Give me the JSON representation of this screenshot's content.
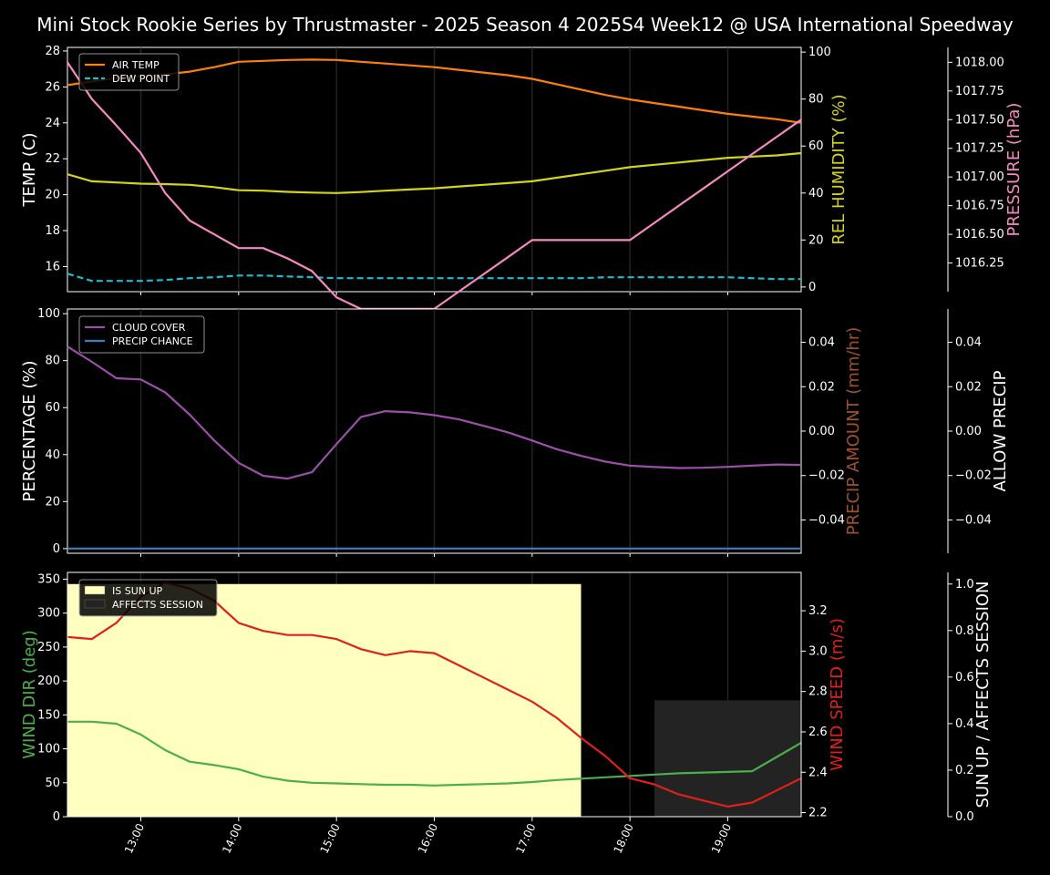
{
  "title": "Mini Stock Rookie Series by Thrustmaster - 2025 Season 4 2025S4 Week12 @ USA International Speedway",
  "x_ticks": [
    "13:00",
    "14:00",
    "15:00",
    "16:00",
    "17:00",
    "18:00",
    "19:00"
  ],
  "colors": {
    "air_temp": "#ff7f0e",
    "dew_point": "#17becf",
    "humidity": "#d4d41a",
    "pressure": "#f58ac0",
    "cloud": "#9b4fa8",
    "precip_chance": "#3a7fc1",
    "precip_amount": "#a0522d",
    "wind_dir": "#4cae4c",
    "wind_speed": "#e0201a",
    "sun_up": "#ffffc0",
    "affects": "#232323"
  },
  "chart_data": [
    {
      "type": "line",
      "panel": "weather",
      "x_hours": [
        12.25,
        12.5,
        12.75,
        13,
        13.25,
        13.5,
        13.75,
        14,
        14.25,
        14.5,
        14.75,
        15,
        15.25,
        15.5,
        15.75,
        16,
        16.25,
        16.5,
        16.75,
        17,
        17.25,
        17.5,
        17.75,
        18,
        18.25,
        18.5,
        18.75,
        19,
        19.25,
        19.5,
        19.75
      ],
      "axes": {
        "temp": {
          "label": "TEMP (C)",
          "lim": [
            14.6,
            28.2
          ],
          "ticks": [
            16,
            18,
            20,
            22,
            24,
            26,
            28
          ]
        },
        "humidity": {
          "label": "REL HUMIDITY (%)",
          "lim": [
            -2,
            102
          ],
          "ticks": [
            0,
            20,
            40,
            60,
            80,
            100
          ]
        },
        "pressure": {
          "label": "PRESSURE (hPa)",
          "lim": [
            1016.0,
            1018.13
          ],
          "ticks": [
            "1016.25",
            "1016.50",
            "1016.75",
            "1017.00",
            "1017.25",
            "1017.50",
            "1017.75",
            "1018.00"
          ]
        }
      },
      "series": [
        {
          "name": "AIR TEMP",
          "axis": "temp",
          "values": [
            26.1,
            26.3,
            26.5,
            26.6,
            26.7,
            26.85,
            27.1,
            27.4,
            27.45,
            27.5,
            27.52,
            27.5,
            27.4,
            27.3,
            27.2,
            27.1,
            26.95,
            26.8,
            26.65,
            26.45,
            26.15,
            25.85,
            25.55,
            25.3,
            25.1,
            24.9,
            24.7,
            24.5,
            24.35,
            24.2,
            24.0
          ]
        },
        {
          "name": "DEW POINT",
          "axis": "temp",
          "values": [
            15.6,
            15.2,
            15.2,
            15.2,
            15.25,
            15.35,
            15.4,
            15.5,
            15.5,
            15.45,
            15.4,
            15.35,
            15.35,
            15.35,
            15.35,
            15.35,
            15.35,
            15.35,
            15.35,
            15.35,
            15.35,
            15.35,
            15.4,
            15.4,
            15.4,
            15.4,
            15.4,
            15.4,
            15.35,
            15.3,
            15.3
          ]
        },
        {
          "name": "REL HUMIDITY",
          "axis": "humidity",
          "values": [
            48,
            45,
            44.5,
            44,
            43.8,
            43.5,
            42.5,
            41.2,
            41,
            40.5,
            40.2,
            40,
            40.4,
            41,
            41.5,
            42,
            42.8,
            43.5,
            44.2,
            45,
            46.5,
            48,
            49.5,
            51,
            52,
            53,
            54,
            55,
            55.5,
            56,
            57
          ]
        },
        {
          "name": "PRESSURE",
          "axis": "pressure",
          "values": [
            1018.0,
            1017.68,
            1017.45,
            1017.21,
            1016.86,
            1016.62,
            1016.5,
            1016.38,
            1016.38,
            1016.29,
            1016.18,
            1015.95,
            1015.85,
            1015.85,
            1015.85,
            1015.85,
            1016.0,
            1016.15,
            1016.3,
            1016.45,
            1016.45,
            1016.45,
            1016.45,
            1016.45,
            1016.6,
            1016.75,
            1016.9,
            1017.05,
            1017.2,
            1017.35,
            1017.5
          ]
        }
      ]
    },
    {
      "type": "line",
      "panel": "clouds",
      "x_hours": [
        12.25,
        12.5,
        12.75,
        13,
        13.25,
        13.5,
        13.75,
        14,
        14.25,
        14.5,
        14.75,
        15,
        15.25,
        15.5,
        15.75,
        16,
        16.25,
        16.5,
        16.75,
        17,
        17.25,
        17.5,
        17.75,
        18,
        18.25,
        18.5,
        18.75,
        19,
        19.25,
        19.5,
        19.75
      ],
      "axes": {
        "percentage": {
          "label": "PERCENTAGE (%)",
          "lim": [
            -2,
            102
          ],
          "ticks": [
            0,
            20,
            40,
            60,
            80,
            100
          ]
        },
        "precip_amount": {
          "label": "PRECIP AMOUNT (mm/hr)",
          "lim": [
            -0.055,
            0.055
          ],
          "ticks": [
            "−0.04",
            "−0.02",
            "0.00",
            "0.02",
            "0.04"
          ]
        },
        "allow_precip": {
          "label": "ALLOW PRECIP",
          "lim": [
            -0.055,
            0.055
          ],
          "ticks": [
            "−0.04",
            "−0.02",
            "0.00",
            "0.02",
            "0.04"
          ]
        }
      },
      "series": [
        {
          "name": "CLOUD COVER",
          "axis": "percentage",
          "values": [
            86,
            79.5,
            72.5,
            72,
            66.5,
            57,
            46,
            36.5,
            31,
            29.8,
            32.5,
            44.5,
            56,
            58.5,
            58,
            56.8,
            55,
            52.3,
            49.5,
            46,
            42.3,
            39.5,
            37,
            35.3,
            34.7,
            34.3,
            34.4,
            34.8,
            35.3,
            35.8,
            35.6
          ]
        },
        {
          "name": "PRECIP CHANCE",
          "axis": "percentage",
          "values": [
            0,
            0,
            0,
            0,
            0,
            0,
            0,
            0,
            0,
            0,
            0,
            0,
            0,
            0,
            0,
            0,
            0,
            0,
            0,
            0,
            0,
            0,
            0,
            0,
            0,
            0,
            0,
            0,
            0,
            0,
            0
          ]
        }
      ]
    },
    {
      "type": "line",
      "panel": "wind",
      "x_hours": [
        12.25,
        12.5,
        12.75,
        13,
        13.25,
        13.5,
        13.75,
        14,
        14.25,
        14.5,
        14.75,
        15,
        15.25,
        15.5,
        15.75,
        16,
        16.25,
        16.5,
        16.75,
        17,
        17.25,
        17.5,
        17.75,
        18,
        18.25,
        18.5,
        18.75,
        19,
        19.25,
        19.5,
        19.75
      ],
      "axes": {
        "wind_dir": {
          "label": "WIND DIR (deg)",
          "lim": [
            0,
            360
          ],
          "ticks": [
            0,
            50,
            100,
            150,
            200,
            250,
            300,
            350
          ]
        },
        "wind_speed": {
          "label": "WIND SPEED (m/s)",
          "lim": [
            2.18,
            3.39
          ],
          "ticks": [
            "2.2",
            "2.4",
            "2.6",
            "2.8",
            "3.0",
            "3.2"
          ]
        },
        "sun": {
          "label": "SUN UP / AFFECTS SESSION",
          "lim": [
            0,
            1.05
          ],
          "ticks": [
            "0.0",
            "0.2",
            "0.4",
            "0.6",
            "0.8",
            "1.0"
          ]
        }
      },
      "series": [
        {
          "name": "WIND DIR",
          "axis": "wind_dir",
          "values": [
            140,
            140,
            137,
            121,
            98,
            81,
            76,
            70,
            59,
            53,
            50,
            49,
            48,
            47,
            47,
            46,
            47,
            48,
            49,
            51,
            54,
            56,
            58,
            60,
            62,
            64,
            65,
            66,
            67,
            88,
            109
          ]
        },
        {
          "name": "WIND SPEED",
          "axis": "wind_speed",
          "values": [
            3.07,
            3.06,
            3.14,
            3.27,
            3.34,
            3.31,
            3.25,
            3.14,
            3.1,
            3.08,
            3.08,
            3.06,
            3.01,
            2.98,
            3.0,
            2.99,
            2.93,
            2.87,
            2.81,
            2.75,
            2.67,
            2.57,
            2.48,
            2.37,
            2.34,
            2.29,
            2.26,
            2.23,
            2.25,
            2.31,
            2.37
          ]
        }
      ],
      "bands": [
        {
          "name": "IS SUN UP",
          "x_start": 12.25,
          "x_end": 17.5,
          "value": 1.0
        },
        {
          "name": "AFFECTS SESSION",
          "x_start": 18.25,
          "x_end": 19.75,
          "value": 0.5
        }
      ]
    }
  ]
}
